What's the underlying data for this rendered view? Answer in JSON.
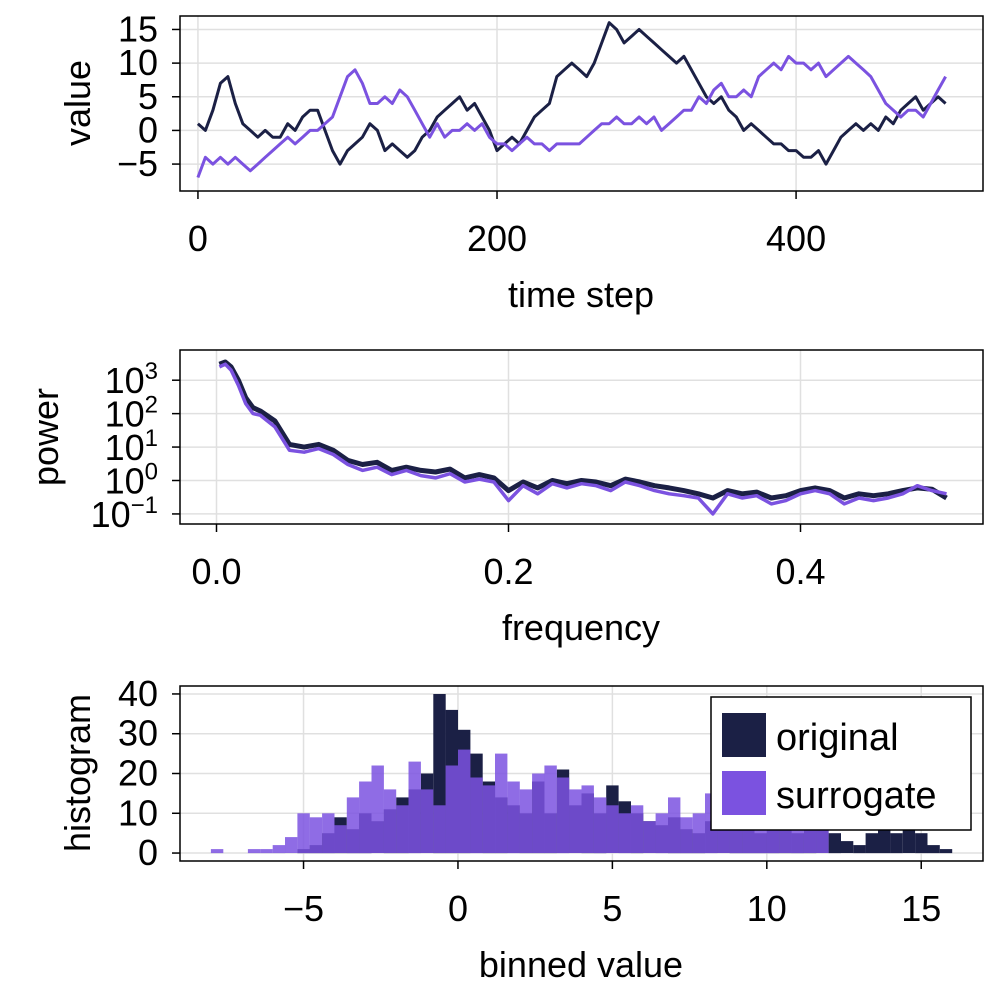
{
  "colors": {
    "original": "#1b2045",
    "surrogate": "#7b52e0",
    "grid": "#e0e0e0"
  },
  "chart_data": [
    {
      "type": "line",
      "xlabel": "time step",
      "ylabel": "value",
      "xlim": [
        -12,
        525
      ],
      "ylim": [
        -9,
        17
      ],
      "xticks": [
        0,
        200,
        400
      ],
      "xtick_labels": [
        "0",
        "200",
        "400"
      ],
      "yticks": [
        -5,
        0,
        5,
        10,
        15
      ],
      "ytick_labels": [
        "−5",
        "0",
        "5",
        "10",
        "15"
      ],
      "grid": true,
      "series": [
        {
          "name": "original",
          "x": [
            0,
            5,
            10,
            15,
            20,
            25,
            30,
            35,
            40,
            45,
            50,
            55,
            60,
            65,
            70,
            75,
            80,
            85,
            90,
            95,
            100,
            105,
            110,
            115,
            120,
            125,
            130,
            135,
            140,
            145,
            150,
            155,
            160,
            165,
            170,
            175,
            180,
            185,
            190,
            195,
            200,
            205,
            210,
            215,
            220,
            225,
            230,
            235,
            240,
            245,
            250,
            255,
            260,
            265,
            270,
            275,
            280,
            285,
            290,
            295,
            300,
            305,
            310,
            315,
            320,
            325,
            330,
            335,
            340,
            345,
            350,
            355,
            360,
            365,
            370,
            375,
            380,
            385,
            390,
            395,
            400,
            405,
            410,
            415,
            420,
            425,
            430,
            435,
            440,
            445,
            450,
            455,
            460,
            465,
            470,
            475,
            480,
            485,
            490,
            495,
            500
          ],
          "y": [
            1,
            0,
            3,
            7,
            8,
            4,
            1,
            0,
            -1,
            0,
            -1,
            -1,
            1,
            0,
            2,
            3,
            3,
            0,
            -3,
            -5,
            -3,
            -2,
            -1,
            1,
            0,
            -3,
            -2,
            -3,
            -4,
            -3,
            -1,
            0,
            2,
            3,
            4,
            5,
            3,
            4,
            2,
            0,
            -3,
            -2,
            -1,
            -2,
            0,
            2,
            3,
            4,
            8,
            9,
            10,
            9,
            8,
            10,
            13,
            16,
            15,
            13,
            14,
            15,
            14,
            13,
            12,
            11,
            10,
            11,
            9,
            7,
            5,
            4,
            5,
            3,
            2,
            0,
            1,
            0,
            -1,
            -2,
            -2,
            -3,
            -3,
            -4,
            -4,
            -3,
            -5,
            -3,
            -1,
            0,
            1,
            0,
            1,
            0,
            2,
            1,
            3,
            4,
            5,
            3,
            4,
            5,
            4
          ]
        },
        {
          "name": "surrogate",
          "x": [
            0,
            5,
            10,
            15,
            20,
            25,
            30,
            35,
            40,
            45,
            50,
            55,
            60,
            65,
            70,
            75,
            80,
            85,
            90,
            95,
            100,
            105,
            110,
            115,
            120,
            125,
            130,
            135,
            140,
            145,
            150,
            155,
            160,
            165,
            170,
            175,
            180,
            185,
            190,
            195,
            200,
            205,
            210,
            215,
            220,
            225,
            230,
            235,
            240,
            245,
            250,
            255,
            260,
            265,
            270,
            275,
            280,
            285,
            290,
            295,
            300,
            305,
            310,
            315,
            320,
            325,
            330,
            335,
            340,
            345,
            350,
            355,
            360,
            365,
            370,
            375,
            380,
            385,
            390,
            395,
            400,
            405,
            410,
            415,
            420,
            425,
            430,
            435,
            440,
            445,
            450,
            455,
            460,
            465,
            470,
            475,
            480,
            485,
            490,
            495,
            500
          ],
          "y": [
            -7,
            -4,
            -5,
            -4,
            -5,
            -4,
            -5,
            -6,
            -5,
            -4,
            -3,
            -2,
            -1,
            -2,
            -1,
            0,
            0,
            1,
            2,
            5,
            8,
            9,
            7,
            4,
            4,
            5,
            4,
            6,
            5,
            3,
            1,
            -1,
            1,
            -1,
            0,
            0,
            1,
            0,
            1,
            -1,
            -2,
            -2,
            -3,
            -2,
            -1,
            -2,
            -2,
            -3,
            -2,
            -2,
            -2,
            -2,
            -1,
            0,
            1,
            1,
            2,
            1,
            1,
            2,
            1,
            2,
            0,
            1,
            2,
            3,
            3,
            5,
            4,
            6,
            7,
            5,
            5,
            6,
            5,
            8,
            9,
            10,
            9,
            11,
            10,
            10,
            9,
            10,
            8,
            9,
            10,
            11,
            10,
            9,
            8,
            6,
            4,
            3,
            2,
            3,
            3,
            2,
            4,
            6,
            8
          ]
        }
      ]
    },
    {
      "type": "line",
      "xlabel": "frequency",
      "ylabel": "power",
      "xscale": "linear",
      "yscale": "log10",
      "xlim": [
        -0.025,
        0.525
      ],
      "ylim": [
        0.05,
        8000
      ],
      "xticks": [
        0.0,
        0.2,
        0.4
      ],
      "xtick_labels": [
        "0.0",
        "0.2",
        "0.4"
      ],
      "yticks": [
        0.1,
        1,
        10,
        100,
        1000
      ],
      "ytick_exponents": [
        "−1",
        "0",
        "1",
        "2",
        "3"
      ],
      "ytick_base": "10",
      "grid": true,
      "series": [
        {
          "name": "original",
          "x": [
            0.002,
            0.006,
            0.01,
            0.015,
            0.02,
            0.025,
            0.03,
            0.04,
            0.05,
            0.06,
            0.07,
            0.08,
            0.09,
            0.1,
            0.11,
            0.12,
            0.13,
            0.14,
            0.15,
            0.16,
            0.17,
            0.18,
            0.19,
            0.2,
            0.21,
            0.22,
            0.23,
            0.24,
            0.25,
            0.26,
            0.27,
            0.28,
            0.29,
            0.3,
            0.31,
            0.32,
            0.33,
            0.34,
            0.35,
            0.36,
            0.37,
            0.38,
            0.39,
            0.4,
            0.41,
            0.42,
            0.43,
            0.44,
            0.45,
            0.46,
            0.47,
            0.48,
            0.49,
            0.5
          ],
          "y": [
            3000,
            3500,
            2500,
            1000,
            300,
            150,
            120,
            60,
            12,
            10,
            12,
            8,
            4,
            3,
            3.5,
            2,
            2.5,
            2,
            1.8,
            2.2,
            1.2,
            1.5,
            1.2,
            0.5,
            0.9,
            0.6,
            1.0,
            0.8,
            1.0,
            0.9,
            0.7,
            1.1,
            0.9,
            0.7,
            0.6,
            0.5,
            0.4,
            0.3,
            0.5,
            0.4,
            0.45,
            0.3,
            0.35,
            0.5,
            0.6,
            0.5,
            0.3,
            0.4,
            0.35,
            0.4,
            0.5,
            0.6,
            0.55,
            0.3
          ]
        },
        {
          "name": "surrogate",
          "x": [
            0.002,
            0.006,
            0.01,
            0.015,
            0.02,
            0.025,
            0.03,
            0.04,
            0.05,
            0.06,
            0.07,
            0.08,
            0.09,
            0.1,
            0.11,
            0.12,
            0.13,
            0.14,
            0.15,
            0.16,
            0.17,
            0.18,
            0.19,
            0.2,
            0.21,
            0.22,
            0.23,
            0.24,
            0.25,
            0.26,
            0.27,
            0.28,
            0.29,
            0.3,
            0.31,
            0.32,
            0.33,
            0.34,
            0.35,
            0.36,
            0.37,
            0.38,
            0.39,
            0.4,
            0.41,
            0.42,
            0.43,
            0.44,
            0.45,
            0.46,
            0.47,
            0.48,
            0.49,
            0.5
          ],
          "y": [
            2500,
            3000,
            2000,
            700,
            200,
            100,
            90,
            40,
            8,
            7,
            9,
            6,
            3,
            2,
            2.5,
            1.5,
            2,
            1.4,
            1.2,
            1.6,
            0.9,
            1.1,
            0.9,
            0.25,
            0.7,
            0.4,
            0.8,
            0.6,
            0.8,
            0.7,
            0.5,
            0.9,
            0.7,
            0.5,
            0.4,
            0.35,
            0.3,
            0.1,
            0.4,
            0.3,
            0.35,
            0.2,
            0.25,
            0.4,
            0.5,
            0.4,
            0.2,
            0.3,
            0.25,
            0.3,
            0.4,
            0.7,
            0.5,
            0.4
          ]
        }
      ]
    },
    {
      "type": "bar",
      "subtype": "histogram",
      "xlabel": "binned value",
      "ylabel": "histogram",
      "xlim": [
        -9,
        17
      ],
      "ylim": [
        -2,
        42
      ],
      "xticks": [
        -5,
        0,
        5,
        10,
        15
      ],
      "xtick_labels": [
        "−5",
        "0",
        "5",
        "10",
        "15"
      ],
      "yticks": [
        0,
        10,
        20,
        30,
        40
      ],
      "ytick_labels": [
        "0",
        "10",
        "20",
        "30",
        "40"
      ],
      "grid": true,
      "legend_position": "top-right",
      "bin_width": 0.4,
      "series": [
        {
          "name": "original",
          "bin_starts": [
            -5.2,
            -4.8,
            -4.4,
            -4.0,
            -3.6,
            -3.2,
            -2.8,
            -2.4,
            -2.0,
            -1.6,
            -1.2,
            -0.8,
            -0.4,
            0.0,
            0.4,
            0.8,
            1.2,
            1.6,
            2.0,
            2.4,
            2.8,
            3.2,
            3.6,
            4.0,
            4.4,
            4.8,
            5.2,
            5.6,
            6.0,
            6.4,
            6.8,
            7.2,
            7.6,
            8.0,
            8.4,
            8.8,
            9.2,
            9.6,
            10.0,
            10.4,
            10.8,
            11.2,
            11.6,
            12.0,
            12.4,
            12.8,
            13.2,
            13.6,
            14.0,
            14.4,
            14.8,
            15.2,
            15.6
          ],
          "counts": [
            1,
            2,
            5,
            9,
            6,
            10,
            8,
            11,
            14,
            16,
            20,
            40,
            36,
            31,
            25,
            18,
            14,
            12,
            10,
            18,
            10,
            21,
            12,
            15,
            10,
            17,
            13,
            10,
            8,
            7,
            9,
            6,
            5,
            8,
            7,
            10,
            6,
            5,
            9,
            6,
            5,
            6,
            8,
            5,
            3,
            2,
            5,
            9,
            5,
            7,
            5,
            2,
            1
          ]
        },
        {
          "name": "surrogate",
          "bin_starts": [
            -8.0,
            -6.8,
            -6.4,
            -6.0,
            -5.6,
            -5.2,
            -4.8,
            -4.4,
            -4.0,
            -3.6,
            -3.2,
            -2.8,
            -2.4,
            -2.0,
            -1.6,
            -1.2,
            -0.8,
            -0.4,
            0.0,
            0.4,
            0.8,
            1.2,
            1.6,
            2.0,
            2.4,
            2.8,
            3.2,
            3.6,
            4.0,
            4.4,
            4.8,
            5.2,
            5.6,
            6.0,
            6.4,
            6.8,
            7.2,
            7.6,
            8.0,
            8.4,
            8.8,
            9.2,
            9.6,
            10.0,
            10.4,
            10.8,
            11.2,
            11.6
          ],
          "counts": [
            1,
            1,
            1,
            2,
            4,
            10,
            9,
            10,
            7,
            14,
            18,
            22,
            16,
            12,
            23,
            16,
            12,
            22,
            26,
            19,
            17,
            25,
            18,
            16,
            20,
            22,
            19,
            16,
            17,
            14,
            12,
            10,
            12,
            8,
            10,
            14,
            9,
            10,
            15,
            12,
            9,
            11,
            10,
            9,
            12,
            9,
            8,
            12
          ]
        }
      ]
    }
  ]
}
